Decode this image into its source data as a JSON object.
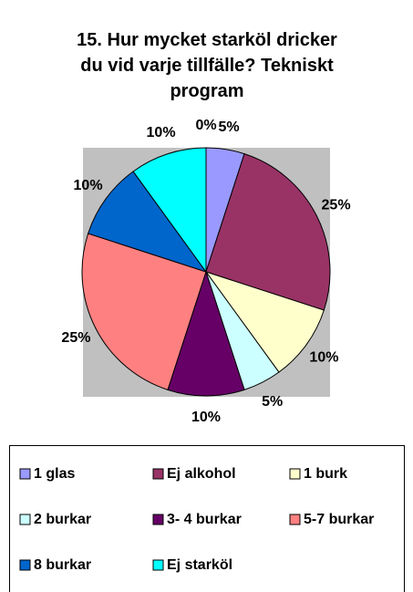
{
  "chart_data": {
    "type": "pie",
    "title": "15. Hur mycket starköl dricker du vid varje tillfälle? Tekniskt program",
    "categories": [
      "1 glas",
      "Ej alkohol",
      "1 burk",
      "2 burkar",
      "3- 4 burkar",
      "5-7 burkar",
      "8 burkar",
      "Ej starköl",
      null
    ],
    "values": [
      5,
      25,
      10,
      5,
      10,
      25,
      10,
      10,
      0
    ],
    "value_labels": [
      "5%",
      "25%",
      "10%",
      "5%",
      "10%",
      "25%",
      "10%",
      "10%",
      "0%"
    ],
    "colors": [
      "#9999ff",
      "#993366",
      "#ffffcc",
      "#ccffff",
      "#660066",
      "#ff8080",
      "#0066cc",
      "#00ffff",
      "#ffffff"
    ]
  }
}
